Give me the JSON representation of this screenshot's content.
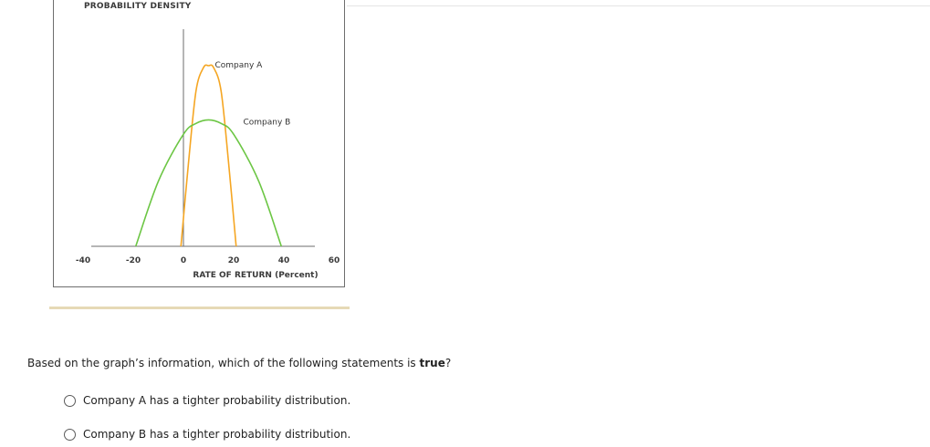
{
  "chart": {
    "ylabel": "PROBABILITY DENSITY",
    "xlabel": "RATE OF RETURN (Percent)"
  },
  "chart_data": {
    "type": "line",
    "title": "",
    "xlabel": "RATE OF RETURN (Percent)",
    "ylabel": "PROBABILITY DENSITY",
    "xlim": [
      -40,
      60
    ],
    "x_ticks": [
      -40,
      -20,
      0,
      20,
      40,
      60
    ],
    "x_tick_labels": [
      "-40",
      "-20",
      "0",
      "20",
      "40",
      "60"
    ],
    "grid": false,
    "series": [
      {
        "name": "Company A",
        "color": "#f5a623",
        "x": [
          -1,
          2,
          5,
          8,
          10,
          12,
          15,
          18,
          21
        ],
        "y": [
          0,
          0.46,
          0.86,
          0.99,
          1.0,
          0.99,
          0.86,
          0.46,
          0
        ]
      },
      {
        "name": "Company B",
        "color": "#6cc644",
        "x": [
          -19,
          -10,
          0,
          5,
          10,
          15,
          20,
          30,
          39
        ],
        "y": [
          0,
          0.36,
          0.62,
          0.68,
          0.7,
          0.68,
          0.62,
          0.36,
          0
        ]
      }
    ]
  },
  "question": {
    "text_before": "Based on the graph’s information, which of the following statements is ",
    "emphasis": "true",
    "text_after": "?"
  },
  "options": [
    "Company A has a tighter probability distribution.",
    "Company B has a tighter probability distribution."
  ]
}
